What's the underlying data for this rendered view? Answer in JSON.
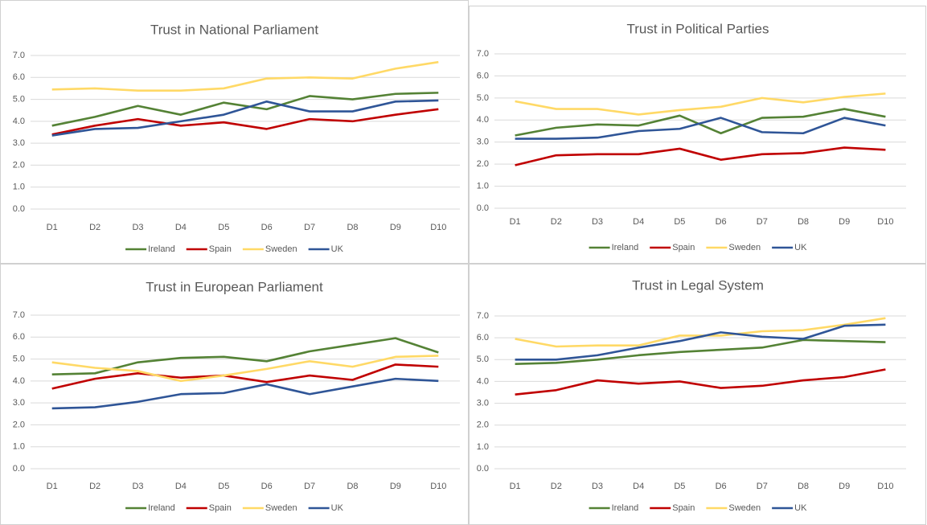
{
  "chart_data": [
    {
      "type": "line",
      "title": "Trust in National Parliament",
      "categories": [
        "D1",
        "D2",
        "D3",
        "D4",
        "D5",
        "D6",
        "D7",
        "D8",
        "D9",
        "D10"
      ],
      "series": [
        {
          "name": "Ireland",
          "color": "#548235",
          "values": [
            3.8,
            4.2,
            4.7,
            4.3,
            4.85,
            4.55,
            5.15,
            5.0,
            5.25,
            5.3
          ]
        },
        {
          "name": "Spain",
          "color": "#c00000",
          "values": [
            3.4,
            3.8,
            4.1,
            3.8,
            3.95,
            3.65,
            4.1,
            4.0,
            4.3,
            4.55
          ]
        },
        {
          "name": "Sweden",
          "color": "#ffd966",
          "values": [
            5.45,
            5.5,
            5.4,
            5.4,
            5.5,
            5.95,
            6.0,
            5.95,
            6.4,
            6.7
          ]
        },
        {
          "name": "UK",
          "color": "#2f5597",
          "values": [
            3.35,
            3.65,
            3.7,
            4.0,
            4.3,
            4.9,
            4.45,
            4.45,
            4.9,
            4.95
          ]
        }
      ],
      "ylim": [
        0,
        7
      ],
      "yticks": [
        {
          "value": 0,
          "label": "0.0"
        },
        {
          "value": 1,
          "label": "1.0"
        },
        {
          "value": 2,
          "label": "2.0"
        },
        {
          "value": 3,
          "label": "3.0"
        },
        {
          "value": 4,
          "label": "4.0"
        },
        {
          "value": 5,
          "label": "5.0"
        },
        {
          "value": 6,
          "label": "6.0"
        },
        {
          "value": 7,
          "label": "7.0"
        }
      ],
      "grid": true,
      "legend": "bottom"
    },
    {
      "type": "line",
      "title": "Trust in Political Parties",
      "categories": [
        "D1",
        "D2",
        "D3",
        "D4",
        "D5",
        "D6",
        "D7",
        "D8",
        "D9",
        "D10"
      ],
      "series": [
        {
          "name": "Ireland",
          "color": "#548235",
          "values": [
            3.3,
            3.65,
            3.8,
            3.75,
            4.2,
            3.4,
            4.1,
            4.15,
            4.5,
            4.15
          ]
        },
        {
          "name": "Spain",
          "color": "#c00000",
          "values": [
            1.95,
            2.4,
            2.45,
            2.45,
            2.7,
            2.2,
            2.45,
            2.5,
            2.75,
            2.65
          ]
        },
        {
          "name": "Sweden",
          "color": "#ffd966",
          "values": [
            4.85,
            4.5,
            4.5,
            4.25,
            4.45,
            4.6,
            5.0,
            4.8,
            5.05,
            5.2
          ]
        },
        {
          "name": "UK",
          "color": "#2f5597",
          "values": [
            3.15,
            3.15,
            3.2,
            3.5,
            3.6,
            4.1,
            3.45,
            3.4,
            4.1,
            3.75
          ]
        }
      ],
      "ylim": [
        0,
        7
      ],
      "yticks": [
        {
          "value": 0,
          "label": "0.0"
        },
        {
          "value": 1,
          "label": "1.0"
        },
        {
          "value": 2,
          "label": "2.0"
        },
        {
          "value": 3,
          "label": "3.0"
        },
        {
          "value": 4,
          "label": "4.0"
        },
        {
          "value": 5,
          "label": "5.0"
        },
        {
          "value": 6,
          "label": "6.0"
        },
        {
          "value": 7,
          "label": "7.0"
        }
      ],
      "grid": true,
      "legend": "bottom"
    },
    {
      "type": "line",
      "title": "Trust in European Parliament",
      "categories": [
        "D1",
        "D2",
        "D3",
        "D4",
        "D5",
        "D6",
        "D7",
        "D8",
        "D9",
        "D10"
      ],
      "series": [
        {
          "name": "Ireland",
          "color": "#548235",
          "values": [
            4.3,
            4.35,
            4.85,
            5.05,
            5.1,
            4.9,
            5.35,
            5.65,
            5.95,
            5.3
          ]
        },
        {
          "name": "Spain",
          "color": "#c00000",
          "values": [
            3.65,
            4.1,
            4.35,
            4.15,
            4.25,
            3.95,
            4.25,
            4.05,
            4.75,
            4.65
          ]
        },
        {
          "name": "Sweden",
          "color": "#ffd966",
          "values": [
            4.85,
            4.6,
            4.45,
            4.0,
            4.25,
            4.55,
            4.9,
            4.65,
            5.1,
            5.15
          ]
        },
        {
          "name": "UK",
          "color": "#2f5597",
          "values": [
            2.75,
            2.8,
            3.05,
            3.4,
            3.45,
            3.85,
            3.4,
            3.75,
            4.1,
            4.0
          ]
        }
      ],
      "ylim": [
        0,
        7
      ],
      "yticks": [
        {
          "value": 0,
          "label": "0.0"
        },
        {
          "value": 1,
          "label": "1.0"
        },
        {
          "value": 2,
          "label": "2.0"
        },
        {
          "value": 3,
          "label": "3.0"
        },
        {
          "value": 4,
          "label": "4.0"
        },
        {
          "value": 5,
          "label": "5.0"
        },
        {
          "value": 6,
          "label": "6.0"
        },
        {
          "value": 7,
          "label": "7.0"
        }
      ],
      "grid": true,
      "legend": "bottom"
    },
    {
      "type": "line",
      "title": "Trust in Legal System",
      "categories": [
        "D1",
        "D2",
        "D3",
        "D4",
        "D5",
        "D6",
        "D7",
        "D8",
        "D9",
        "D10"
      ],
      "series": [
        {
          "name": "Ireland",
          "color": "#548235",
          "values": [
            4.8,
            4.85,
            5.0,
            5.2,
            5.35,
            5.45,
            5.55,
            5.9,
            5.85,
            5.8
          ]
        },
        {
          "name": "Spain",
          "color": "#c00000",
          "values": [
            3.4,
            3.6,
            4.05,
            3.9,
            4.0,
            3.7,
            3.8,
            4.05,
            4.2,
            4.55
          ]
        },
        {
          "name": "Sweden",
          "color": "#ffd966",
          "values": [
            5.95,
            5.6,
            5.65,
            5.65,
            6.1,
            6.1,
            6.3,
            6.35,
            6.6,
            6.9
          ]
        },
        {
          "name": "UK",
          "color": "#2f5597",
          "values": [
            5.0,
            5.0,
            5.2,
            5.55,
            5.85,
            6.25,
            6.05,
            5.95,
            6.55,
            6.6
          ]
        }
      ],
      "ylim": [
        0,
        7
      ],
      "yticks": [
        {
          "value": 0,
          "label": "0.0"
        },
        {
          "value": 1,
          "label": "1.0"
        },
        {
          "value": 2,
          "label": "2.0"
        },
        {
          "value": 3,
          "label": "3.0"
        },
        {
          "value": 4,
          "label": "4.0"
        },
        {
          "value": 5,
          "label": "5.0"
        },
        {
          "value": 6,
          "label": "6.0"
        },
        {
          "value": 7,
          "label": "7.0"
        }
      ],
      "grid": true,
      "legend": "bottom"
    }
  ]
}
